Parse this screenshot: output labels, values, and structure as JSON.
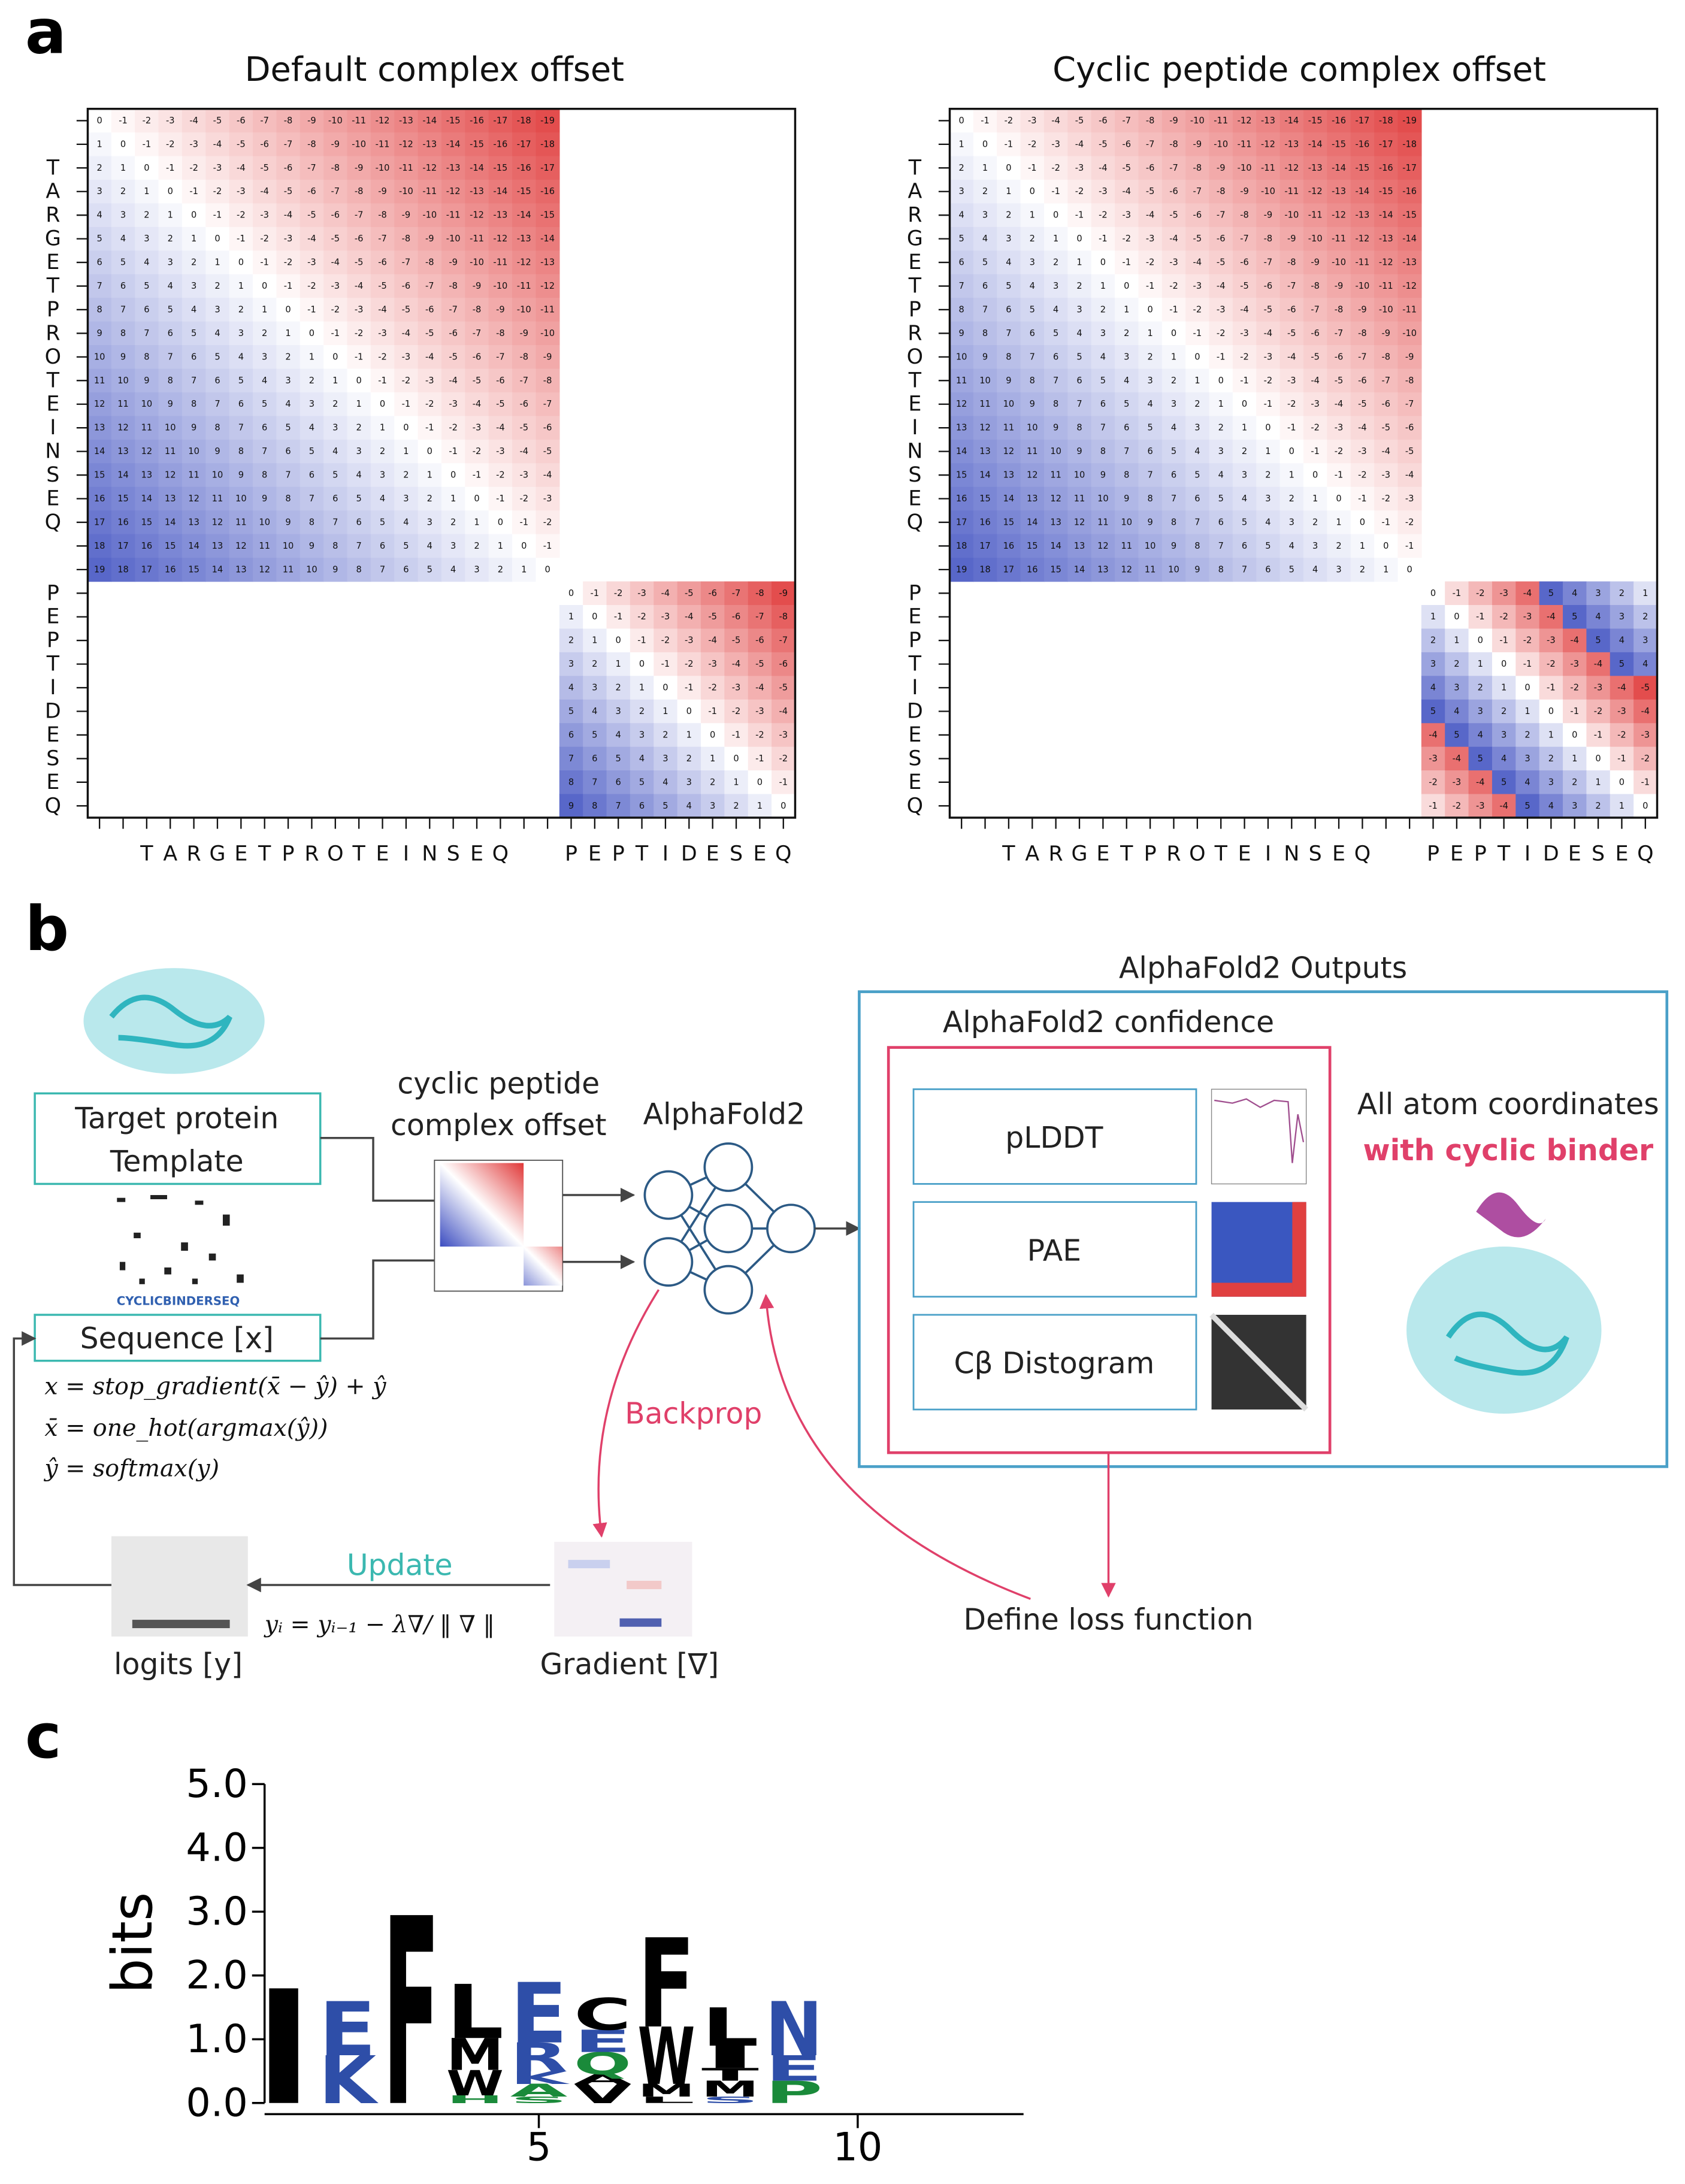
{
  "panel_labels": [
    "a",
    "b",
    "c"
  ],
  "panel_a": {
    "titles": [
      "Default complex offset",
      "Cyclic peptide complex offset"
    ],
    "target_labels": [
      null,
      null,
      "T",
      "A",
      "R",
      "G",
      "E",
      "T",
      "P",
      "R",
      "O",
      "T",
      "E",
      "I",
      "N",
      "S",
      "E",
      "Q",
      null,
      null
    ],
    "peptide_labels": [
      "P",
      "E",
      "P",
      "T",
      "I",
      "D",
      "E",
      "S",
      "E",
      "Q"
    ],
    "target_offsets": [
      [
        0,
        -1,
        -2,
        -3,
        -4,
        -5,
        -6,
        -7,
        -8,
        -9,
        -10,
        -11,
        -12,
        -13,
        -14,
        -15,
        -16,
        -17,
        -18,
        -19
      ],
      [
        1,
        0,
        -1,
        -2,
        -3,
        -4,
        -5,
        -6,
        -7,
        -8,
        -9,
        -10,
        -11,
        -12,
        -13,
        -14,
        -15,
        -16,
        -17,
        -18
      ],
      [
        2,
        1,
        0,
        -1,
        -2,
        -3,
        -4,
        -5,
        -6,
        -7,
        -8,
        -9,
        -10,
        -11,
        -12,
        -13,
        -14,
        -15,
        -16,
        -17
      ],
      [
        3,
        2,
        1,
        0,
        -1,
        -2,
        -3,
        -4,
        -5,
        -6,
        -7,
        -8,
        -9,
        -10,
        -11,
        -12,
        -13,
        -14,
        -15,
        -16
      ],
      [
        4,
        3,
        2,
        1,
        0,
        -1,
        -2,
        -3,
        -4,
        -5,
        -6,
        -7,
        -8,
        -9,
        -10,
        -11,
        -12,
        -13,
        -14,
        -15
      ],
      [
        5,
        4,
        3,
        2,
        1,
        0,
        -1,
        -2,
        -3,
        -4,
        -5,
        -6,
        -7,
        -8,
        -9,
        -10,
        -11,
        -12,
        -13,
        -14
      ],
      [
        6,
        5,
        4,
        3,
        2,
        1,
        0,
        -1,
        -2,
        -3,
        -4,
        -5,
        -6,
        -7,
        -8,
        -9,
        -10,
        -11,
        -12,
        -13
      ],
      [
        7,
        6,
        5,
        4,
        3,
        2,
        1,
        0,
        -1,
        -2,
        -3,
        -4,
        -5,
        -6,
        -7,
        -8,
        -9,
        -10,
        -11,
        -12
      ],
      [
        8,
        7,
        6,
        5,
        4,
        3,
        2,
        1,
        0,
        -1,
        -2,
        -3,
        -4,
        -5,
        -6,
        -7,
        -8,
        -9,
        -10,
        -11
      ],
      [
        9,
        8,
        7,
        6,
        5,
        4,
        3,
        2,
        1,
        0,
        -1,
        -2,
        -3,
        -4,
        -5,
        -6,
        -7,
        -8,
        -9,
        -10
      ],
      [
        10,
        9,
        8,
        7,
        6,
        5,
        4,
        3,
        2,
        1,
        0,
        -1,
        -2,
        -3,
        -4,
        -5,
        -6,
        -7,
        -8,
        -9
      ],
      [
        11,
        10,
        9,
        8,
        7,
        6,
        5,
        4,
        3,
        2,
        1,
        0,
        -1,
        -2,
        -3,
        -4,
        -5,
        -6,
        -7,
        -8
      ],
      [
        12,
        11,
        10,
        9,
        8,
        7,
        6,
        5,
        4,
        3,
        2,
        1,
        0,
        -1,
        -2,
        -3,
        -4,
        -5,
        -6,
        -7
      ],
      [
        13,
        12,
        11,
        10,
        9,
        8,
        7,
        6,
        5,
        4,
        3,
        2,
        1,
        0,
        -1,
        -2,
        -3,
        -4,
        -5,
        -6
      ],
      [
        14,
        13,
        12,
        11,
        10,
        9,
        8,
        7,
        6,
        5,
        4,
        3,
        2,
        1,
        0,
        -1,
        -2,
        -3,
        -4,
        -5
      ],
      [
        15,
        14,
        13,
        12,
        11,
        10,
        9,
        8,
        7,
        6,
        5,
        4,
        3,
        2,
        1,
        0,
        -1,
        -2,
        -3,
        -4
      ],
      [
        16,
        15,
        14,
        13,
        12,
        11,
        10,
        9,
        8,
        7,
        6,
        5,
        4,
        3,
        2,
        1,
        0,
        -1,
        -2,
        -3
      ],
      [
        17,
        16,
        15,
        14,
        13,
        12,
        11,
        10,
        9,
        8,
        7,
        6,
        5,
        4,
        3,
        2,
        1,
        0,
        -1,
        -2
      ],
      [
        18,
        17,
        16,
        15,
        14,
        13,
        12,
        11,
        10,
        9,
        8,
        7,
        6,
        5,
        4,
        3,
        2,
        1,
        0,
        -1
      ],
      [
        19,
        18,
        17,
        16,
        15,
        14,
        13,
        12,
        11,
        10,
        9,
        8,
        7,
        6,
        5,
        4,
        3,
        2,
        1,
        0
      ]
    ],
    "peptide_offsets": [
      [
        [
          0,
          -1,
          -2,
          -3,
          -4,
          -5,
          -6,
          -7,
          -8,
          -9
        ],
        [
          1,
          0,
          -1,
          -2,
          -3,
          -4,
          -5,
          -6,
          -7,
          -8
        ],
        [
          2,
          1,
          0,
          -1,
          -2,
          -3,
          -4,
          -5,
          -6,
          -7
        ],
        [
          3,
          2,
          1,
          0,
          -1,
          -2,
          -3,
          -4,
          -5,
          -6
        ],
        [
          4,
          3,
          2,
          1,
          0,
          -1,
          -2,
          -3,
          -4,
          -5
        ],
        [
          5,
          4,
          3,
          2,
          1,
          0,
          -1,
          -2,
          -3,
          -4
        ],
        [
          6,
          5,
          4,
          3,
          2,
          1,
          0,
          -1,
          -2,
          -3
        ],
        [
          7,
          6,
          5,
          4,
          3,
          2,
          1,
          0,
          -1,
          -2
        ],
        [
          8,
          7,
          6,
          5,
          4,
          3,
          2,
          1,
          0,
          -1
        ],
        [
          9,
          8,
          7,
          6,
          5,
          4,
          3,
          2,
          1,
          0
        ]
      ],
      [
        [
          0,
          -1,
          -2,
          -3,
          -4,
          5,
          4,
          3,
          2,
          1
        ],
        [
          1,
          0,
          -1,
          -2,
          -3,
          -4,
          5,
          4,
          3,
          2
        ],
        [
          2,
          1,
          0,
          -1,
          -2,
          -3,
          -4,
          5,
          4,
          3
        ],
        [
          3,
          2,
          1,
          0,
          -1,
          -2,
          -3,
          -4,
          5,
          4
        ],
        [
          4,
          3,
          2,
          1,
          0,
          -1,
          -2,
          -3,
          -4,
          -5
        ],
        [
          5,
          4,
          3,
          2,
          1,
          0,
          -1,
          -2,
          -3,
          -4
        ],
        [
          -4,
          5,
          4,
          3,
          2,
          1,
          0,
          -1,
          -2,
          -3
        ],
        [
          -3,
          -4,
          5,
          4,
          3,
          2,
          1,
          0,
          -1,
          -2
        ],
        [
          -2,
          -3,
          -4,
          5,
          4,
          3,
          2,
          1,
          0,
          -1
        ],
        [
          -1,
          -2,
          -3,
          -4,
          5,
          4,
          3,
          2,
          1,
          0
        ]
      ]
    ]
  },
  "panel_b": {
    "target_box": [
      "Target protein",
      "Template"
    ],
    "template_sequence": "CYCLICBINDERSEQ",
    "sequence_box": "Sequence [x]",
    "equations": [
      "x = stop_gradient(x̄ − ŷ) + ŷ",
      "x̄ = one_hot(argmax(ŷ))",
      "ŷ = softmax(y)"
    ],
    "offset_label": [
      "cyclic peptide",
      "complex offset"
    ],
    "model": "AlphaFold2",
    "outputs_title": "AlphaFold2 Outputs",
    "confidence_title": "AlphaFold2 confidence",
    "confidence_items": [
      "pLDDT",
      "PAE",
      "Cβ Distogram"
    ],
    "coordinates": [
      "All atom coordinates",
      "with cyclic binder"
    ],
    "backprop": "Backprop",
    "loss": "Define loss function",
    "update": "Update",
    "update_rule": "yᵢ = yᵢ₋₁ − λ∇/ ‖ ∇ ‖",
    "logits": "logits [y]",
    "gradient": "Gradient [∇]"
  },
  "chart_data": {
    "type": "logo",
    "ylabel": "bits",
    "xlim": [
      0.7,
      12.6
    ],
    "ylim": [
      0,
      5
    ],
    "xticks": [
      5,
      10
    ],
    "yticks": [
      {
        "value": 0,
        "label": "0.0"
      },
      {
        "value": 1,
        "label": "1.0"
      },
      {
        "value": 2,
        "label": "2.0"
      },
      {
        "value": 3,
        "label": "3.0"
      },
      {
        "value": 4,
        "label": "4.0"
      },
      {
        "value": 5,
        "label": "5.0"
      }
    ],
    "positions": [
      1,
      2,
      3,
      4,
      5,
      6,
      7,
      8,
      9
    ],
    "stacks": [
      [
        {
          "letter": "I",
          "height": 1.8,
          "color": "#000000"
        }
      ],
      [
        {
          "letter": "K",
          "height": 0.75,
          "color": "#2e4ea8"
        },
        {
          "letter": "E",
          "height": 0.85,
          "color": "#2e4ea8"
        }
      ],
      [
        {
          "letter": "F",
          "height": 2.95,
          "color": "#000000"
        }
      ],
      [
        {
          "letter": "H",
          "height": 0.12,
          "color": "#1a8a3a"
        },
        {
          "letter": "W",
          "height": 0.4,
          "color": "#000000"
        },
        {
          "letter": "M",
          "height": 0.5,
          "color": "#000000"
        },
        {
          "letter": "L",
          "height": 0.85,
          "color": "#000000"
        }
      ],
      [
        {
          "letter": "S",
          "height": 0.1,
          "color": "#1a8a3a"
        },
        {
          "letter": "A",
          "height": 0.2,
          "color": "#1a8a3a"
        },
        {
          "letter": "K",
          "height": 0.2,
          "color": "#2e4ea8"
        },
        {
          "letter": "R",
          "height": 0.45,
          "color": "#2e4ea8"
        },
        {
          "letter": "E",
          "height": 0.95,
          "color": "#2e4ea8"
        }
      ],
      [
        {
          "letter": "V",
          "height": 0.3,
          "color": "#000000"
        },
        {
          "letter": "A",
          "height": 0.15,
          "color": "#000000"
        },
        {
          "letter": "Q",
          "height": 0.35,
          "color": "#1a8a3a"
        },
        {
          "letter": "E",
          "height": 0.35,
          "color": "#2e4ea8"
        },
        {
          "letter": "C",
          "height": 0.5,
          "color": "#000000"
        }
      ],
      [
        {
          "letter": "L",
          "height": 0.1,
          "color": "#000000"
        },
        {
          "letter": "M",
          "height": 0.2,
          "color": "#000000"
        },
        {
          "letter": "W",
          "height": 0.9,
          "color": "#000000"
        },
        {
          "letter": "F",
          "height": 1.4,
          "color": "#000000"
        }
      ],
      [
        {
          "letter": "S",
          "height": 0.1,
          "color": "#2e4ea8"
        },
        {
          "letter": "M",
          "height": 0.25,
          "color": "#000000"
        },
        {
          "letter": "T",
          "height": 0.2,
          "color": "#000000"
        },
        {
          "letter": "I",
          "height": 0.35,
          "color": "#000000"
        },
        {
          "letter": "L",
          "height": 0.6,
          "color": "#000000"
        }
      ],
      [
        {
          "letter": "P",
          "height": 0.35,
          "color": "#1a8a3a"
        },
        {
          "letter": "E",
          "height": 0.4,
          "color": "#2e4ea8"
        },
        {
          "letter": "N",
          "height": 0.85,
          "color": "#2e4ea8"
        }
      ]
    ]
  }
}
